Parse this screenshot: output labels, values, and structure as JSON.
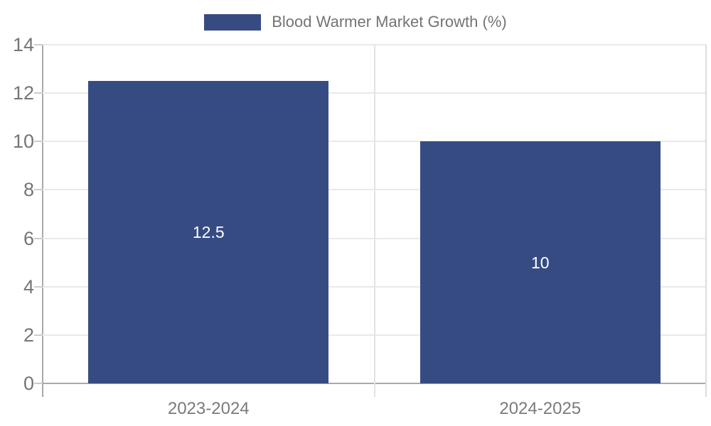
{
  "legend": {
    "label": "Blood Warmer Market Growth (%)"
  },
  "colors": {
    "bar": "#374b83",
    "axis": "#a9a9a9",
    "grid": "#e9e9e9",
    "tick": "#cccccc",
    "label_text": "#757575",
    "value_text": "#ffffff"
  },
  "chart_data": {
    "type": "bar",
    "title": "Blood Warmer Market Growth (%)",
    "legend_entries": [
      "Blood Warmer Market Growth (%)"
    ],
    "legend_position": "top-center",
    "categories": [
      "2023-2024",
      "2024-2025"
    ],
    "values": [
      12.5,
      10
    ],
    "value_labels": [
      "12.5",
      "10"
    ],
    "xlabel": "",
    "ylabel": "",
    "ylim": [
      0,
      14
    ],
    "ytick_step": 2,
    "yticks": [
      0,
      2,
      4,
      6,
      8,
      10,
      12,
      14
    ],
    "grid": true,
    "bar_color": "#374b83"
  }
}
